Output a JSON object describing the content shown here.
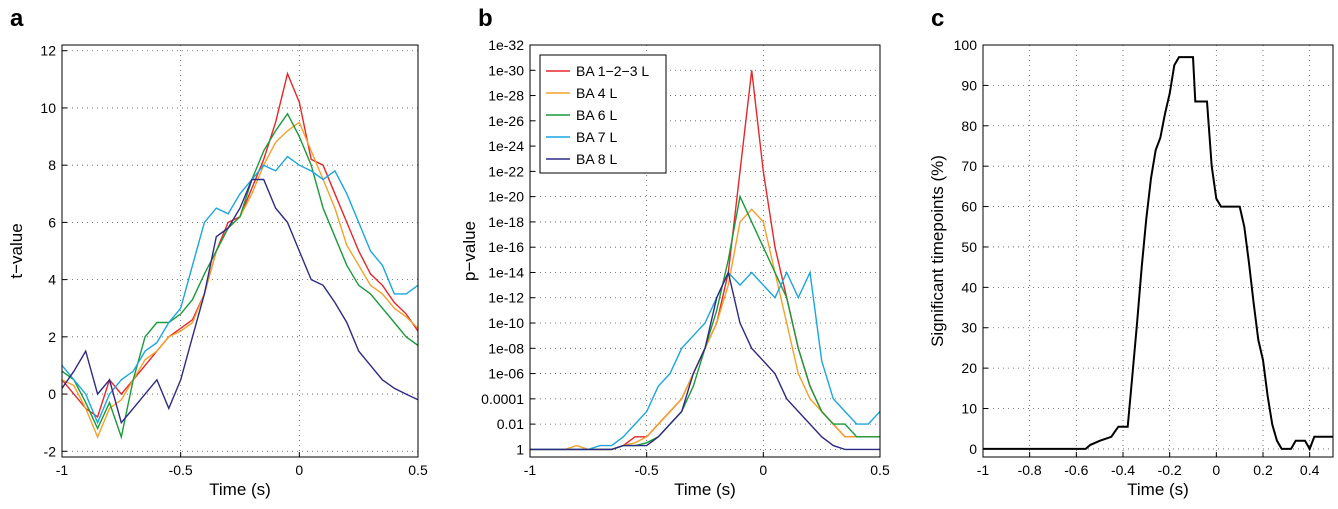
{
  "chart_data": [
    {
      "type": "line",
      "panel_label": "a",
      "xlabel": "Time (s)",
      "ylabel": "t−value",
      "grid": true,
      "x": [
        -1,
        -0.95,
        -0.9,
        -0.85,
        -0.8,
        -0.75,
        -0.7,
        -0.65,
        -0.6,
        -0.55,
        -0.5,
        -0.45,
        -0.4,
        -0.35,
        -0.3,
        -0.25,
        -0.2,
        -0.15,
        -0.1,
        -0.05,
        0,
        0.05,
        0.1,
        0.15,
        0.2,
        0.25,
        0.3,
        0.35,
        0.4,
        0.45,
        0.5
      ],
      "xlim": [
        -1,
        0.5
      ],
      "xticks": [
        -1,
        -0.5,
        0,
        0.5
      ],
      "ylim": [
        -2.2,
        12.2
      ],
      "yticks": [
        -2,
        0,
        2,
        4,
        6,
        8,
        10,
        12
      ],
      "series": [
        {
          "color": "#e8262a",
          "values": [
            0.5,
            0,
            -0.5,
            -0.8,
            0.5,
            0,
            0.5,
            1,
            1.5,
            2,
            2.3,
            2.6,
            3.5,
            5,
            6,
            6.2,
            7.2,
            8.2,
            9.5,
            11.2,
            10.2,
            8.2,
            8,
            7,
            6,
            5,
            4.2,
            3.8,
            3.2,
            2.8,
            2.2
          ]
        },
        {
          "color": "#f5a02a",
          "values": [
            0.5,
            0.3,
            -0.5,
            -1.5,
            -0.5,
            -0.2,
            0.5,
            1.2,
            1.5,
            2,
            2.2,
            2.5,
            3.5,
            5,
            5.8,
            6.2,
            7,
            8,
            8.8,
            9.2,
            9.5,
            8.5,
            7.5,
            6.5,
            5.2,
            4.5,
            3.8,
            3.5,
            3,
            2.7,
            2.3
          ]
        },
        {
          "color": "#1a9a3a",
          "values": [
            0.8,
            0.5,
            -0.3,
            -1.2,
            -0.3,
            -1.5,
            0.5,
            2,
            2.5,
            2.5,
            2.8,
            3.3,
            4.2,
            5,
            5.8,
            6.2,
            7.5,
            8.5,
            9.2,
            9.8,
            9,
            8,
            6.5,
            5.5,
            4.5,
            3.8,
            3.5,
            3,
            2.5,
            2,
            1.7
          ]
        },
        {
          "color": "#1ba6e0",
          "values": [
            1,
            0.5,
            0,
            -1,
            0,
            0.5,
            0.8,
            1.5,
            1.8,
            2.5,
            3,
            4.5,
            6,
            6.5,
            6.3,
            7,
            7.5,
            8,
            7.8,
            8.3,
            8,
            7.8,
            7.5,
            7.8,
            7,
            6,
            5,
            4.5,
            3.5,
            3.5,
            3.8
          ]
        },
        {
          "color": "#2e2a85",
          "values": [
            0.2,
            0.8,
            1.5,
            0,
            0.5,
            -1,
            -0.5,
            0,
            0.5,
            -0.5,
            0.5,
            2,
            3.5,
            5.5,
            5.8,
            6.5,
            7.5,
            7.5,
            6.5,
            6,
            5,
            4,
            3.8,
            3.2,
            2.5,
            1.5,
            1,
            0.5,
            0.2,
            0,
            -0.2
          ]
        }
      ]
    },
    {
      "type": "line",
      "panel_label": "b",
      "xlabel": "Time (s)",
      "ylabel": "p−value",
      "grid": true,
      "log_y": true,
      "legend": "top-left",
      "x": [
        -1,
        -0.95,
        -0.9,
        -0.85,
        -0.8,
        -0.75,
        -0.7,
        -0.65,
        -0.6,
        -0.55,
        -0.5,
        -0.45,
        -0.4,
        -0.35,
        -0.3,
        -0.25,
        -0.2,
        -0.15,
        -0.1,
        -0.05,
        0,
        0.05,
        0.1,
        0.15,
        0.2,
        0.25,
        0.3,
        0.35,
        0.4,
        0.45,
        0.5
      ],
      "xlim": [
        -1,
        0.5
      ],
      "xticks": [
        -1,
        -0.5,
        0,
        0.5
      ],
      "ylim": [
        4,
        1e-32
      ],
      "yticks": [
        {
          "value": 1e-32,
          "label": "1e-32"
        },
        {
          "value": 1e-30,
          "label": "1e-30"
        },
        {
          "value": 1e-28,
          "label": "1e-28"
        },
        {
          "value": 1e-26,
          "label": "1e-26"
        },
        {
          "value": 1e-24,
          "label": "1e-24"
        },
        {
          "value": 1e-22,
          "label": "1e-22"
        },
        {
          "value": 1e-20,
          "label": "1e-20"
        },
        {
          "value": 1e-18,
          "label": "1e-18"
        },
        {
          "value": 1e-16,
          "label": "1e-16"
        },
        {
          "value": 1e-14,
          "label": "1e-14"
        },
        {
          "value": 1e-12,
          "label": "1e-12"
        },
        {
          "value": 1e-10,
          "label": "1e-10"
        },
        {
          "value": 1e-08,
          "label": "1e-08"
        },
        {
          "value": 1e-06,
          "label": "1e-06"
        },
        0.0001,
        0.01,
        1
      ],
      "series": [
        {
          "name": "BA 1−2−3 L",
          "color": "#e8262a",
          "values": [
            1,
            1,
            1,
            1,
            1,
            1,
            1,
            1,
            0.5,
            0.1,
            0.1,
            0.01,
            0.001,
            0.0001,
            1e-06,
            1e-08,
            1e-10,
            1e-14,
            1e-22,
            1e-30,
            1e-22,
            1e-16,
            1e-12,
            1e-08,
            1e-05,
            0.001,
            0.01,
            0.1,
            0.1,
            0.1,
            0.1
          ]
        },
        {
          "name": "BA 4 L",
          "color": "#f5a02a",
          "values": [
            1,
            1,
            1,
            1,
            0.5,
            1,
            1,
            1,
            0.5,
            0.3,
            0.1,
            0.01,
            0.001,
            0.0001,
            1e-06,
            1e-08,
            1e-10,
            1e-13,
            1e-18,
            1e-19,
            1e-18,
            1e-14,
            1e-10,
            1e-06,
            0.0001,
            0.001,
            0.01,
            0.1,
            0.1,
            0.1,
            0.1
          ]
        },
        {
          "name": "BA 6 L",
          "color": "#1a9a3a",
          "values": [
            1,
            1,
            1,
            1,
            1,
            1,
            1,
            1,
            0.5,
            0.5,
            0.3,
            0.1,
            0.01,
            0.001,
            1e-05,
            1e-08,
            1e-11,
            1e-15,
            1e-20,
            1e-18,
            1e-16,
            1e-14,
            1e-12,
            1e-08,
            1e-05,
            0.001,
            0.01,
            0.01,
            0.1,
            0.1,
            0.1
          ]
        },
        {
          "name": "BA 7 L",
          "color": "#1ba6e0",
          "values": [
            1,
            1,
            1,
            1,
            1,
            1,
            0.5,
            0.5,
            0.1,
            0.01,
            0.001,
            1e-05,
            1e-06,
            1e-08,
            1e-09,
            1e-10,
            1e-12,
            1e-14,
            1e-13,
            1e-14,
            1e-13,
            1e-12,
            1e-14,
            1e-12,
            1e-14,
            1e-07,
            0.0001,
            0.001,
            0.01,
            0.01,
            0.001
          ]
        },
        {
          "name": "BA 8 L",
          "color": "#2e2a85",
          "values": [
            1,
            1,
            1,
            1,
            1,
            1,
            1,
            1,
            0.5,
            0.5,
            0.5,
            0.1,
            0.01,
            0.001,
            1e-06,
            1e-08,
            1e-12,
            1e-14,
            1e-10,
            1e-08,
            1e-07,
            1e-06,
            0.0001,
            0.001,
            0.01,
            0.1,
            0.5,
            1,
            1,
            1,
            1
          ]
        }
      ]
    },
    {
      "type": "line",
      "panel_label": "c",
      "xlabel": "Time (s)",
      "ylabel": "Significant timepoints (%)",
      "grid": true,
      "x": [
        -1,
        -0.56,
        -0.54,
        -0.5,
        -0.45,
        -0.42,
        -0.38,
        -0.36,
        -0.34,
        -0.32,
        -0.3,
        -0.28,
        -0.26,
        -0.24,
        -0.22,
        -0.2,
        -0.18,
        -0.16,
        -0.1,
        -0.09,
        -0.04,
        -0.02,
        0,
        0.02,
        0.1,
        0.12,
        0.14,
        0.16,
        0.18,
        0.2,
        0.22,
        0.24,
        0.26,
        0.28,
        0.32,
        0.34,
        0.38,
        0.4,
        0.42,
        0.5
      ],
      "xlim": [
        -1,
        0.5
      ],
      "xticks": [
        -1,
        -0.8,
        -0.6,
        -0.4,
        -0.2,
        0,
        0.2,
        0.4
      ],
      "ylim": [
        -2,
        100
      ],
      "yticks": [
        0,
        10,
        20,
        30,
        40,
        50,
        60,
        70,
        80,
        90,
        100
      ],
      "series": [
        {
          "color": "#000000",
          "values": [
            0,
            0,
            1,
            2,
            3,
            5.5,
            5.5,
            18,
            31,
            45,
            57,
            67,
            74,
            77,
            83,
            88,
            95,
            97,
            97,
            86,
            86,
            70,
            62,
            60,
            60,
            55,
            46,
            36,
            27,
            22,
            13,
            6,
            2,
            0,
            0,
            2,
            2,
            0,
            3,
            3
          ]
        }
      ]
    }
  ]
}
